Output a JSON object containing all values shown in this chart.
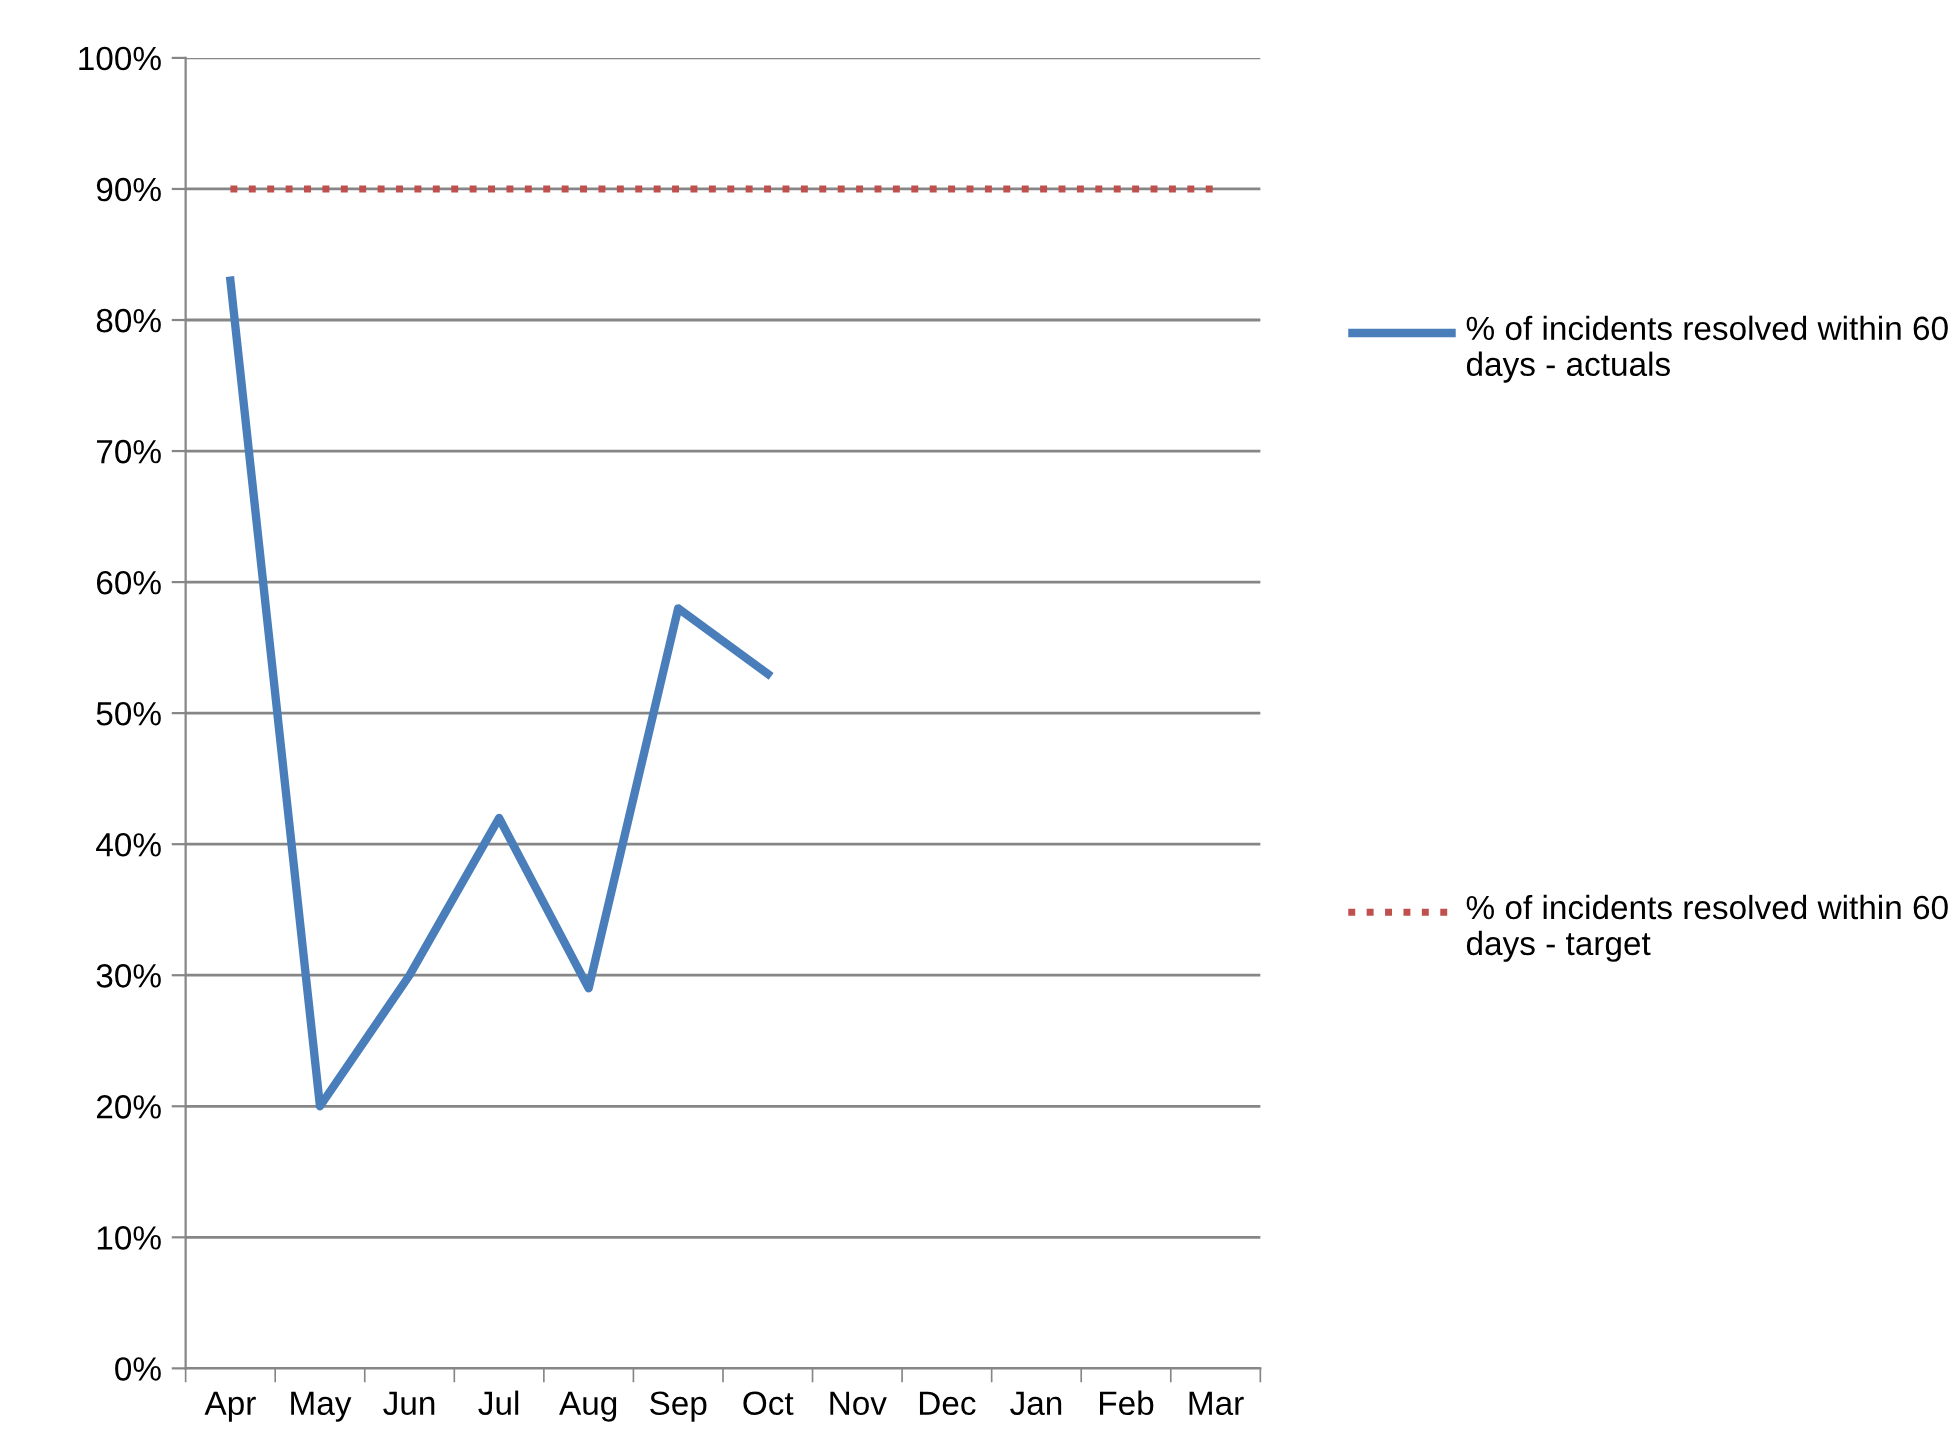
{
  "chart_data": {
    "type": "line",
    "categories": [
      "Apr",
      "May",
      "Jun",
      "Jul",
      "Aug",
      "Sep",
      "Oct",
      "Nov",
      "Dec",
      "Jan",
      "Feb",
      "Mar"
    ],
    "series": [
      {
        "name": "% of incidents resolved within 60 days - actuals",
        "color": "#4a7ebb",
        "line_style": "solid",
        "values": [
          83,
          20,
          30,
          42,
          29,
          58,
          53,
          null,
          null,
          null,
          null,
          null
        ]
      },
      {
        "name": "% of incidents resolved within 60 days - target",
        "color": "#c0504d",
        "line_style": "dotted",
        "values": [
          90,
          90,
          90,
          90,
          90,
          90,
          90,
          90,
          90,
          90,
          90,
          90
        ]
      }
    ],
    "ylim": [
      0,
      100
    ],
    "yticks": [
      {
        "value": 0,
        "label": "0%"
      },
      {
        "value": 10,
        "label": "10%"
      },
      {
        "value": 20,
        "label": "20%"
      },
      {
        "value": 30,
        "label": "30%"
      },
      {
        "value": 40,
        "label": "40%"
      },
      {
        "value": 50,
        "label": "50%"
      },
      {
        "value": 60,
        "label": "60%"
      },
      {
        "value": 70,
        "label": "70%"
      },
      {
        "value": 80,
        "label": "80%"
      },
      {
        "value": 90,
        "label": "90%"
      },
      {
        "value": 100,
        "label": "100%"
      }
    ],
    "grid": "y",
    "legend": "right",
    "marker": "none"
  }
}
